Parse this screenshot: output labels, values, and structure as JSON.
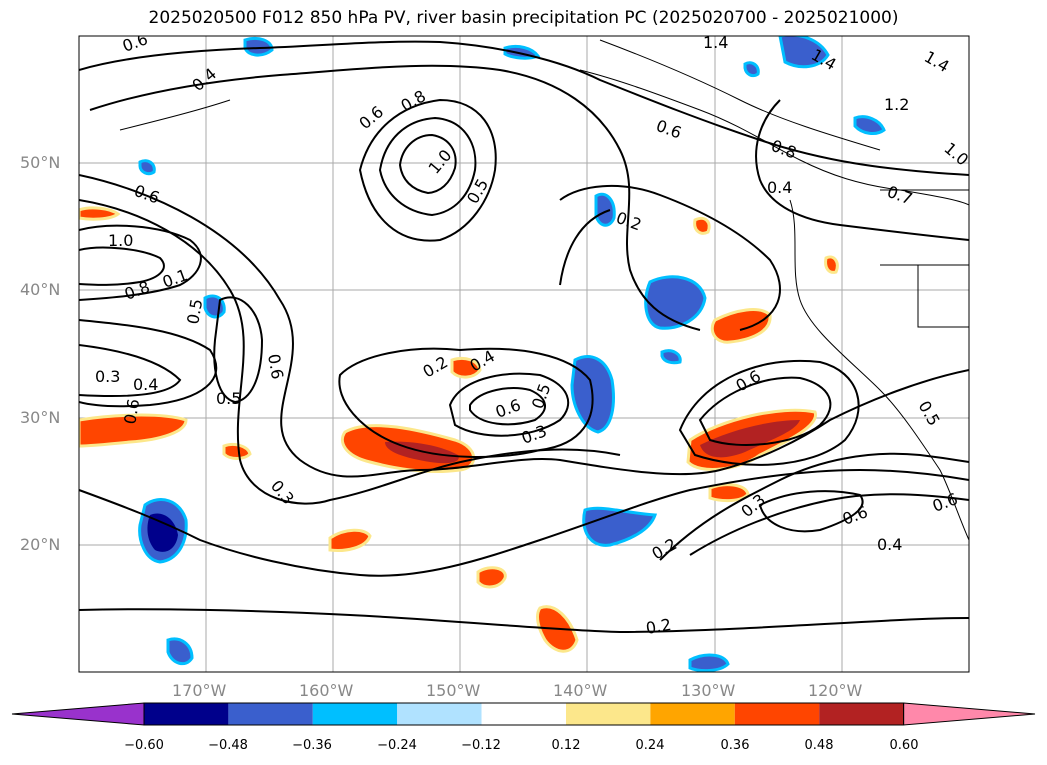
{
  "title": "2025020500 F012 850 hPa PV, river basin precipitation PC (2025020700 - 2025021000)",
  "axes": {
    "lat_labels": [
      "50°N",
      "40°N",
      "30°N",
      "20°N"
    ],
    "lon_labels": [
      "170°W",
      "160°W",
      "150°W",
      "140°W",
      "130°W",
      "120°W"
    ]
  },
  "contour_labels": [
    "0.6",
    "0.4",
    "0.6",
    "0.8",
    "1.0",
    "0.5",
    "0.6",
    "0.8",
    "0.4",
    "1.4",
    "1.4",
    "1.2",
    "1.0",
    "0.7",
    "0.6",
    "1.0",
    "0.8",
    "0.1",
    "0.5",
    "0.6",
    "0.3",
    "0.4",
    "0.5",
    "0.6",
    "0.2",
    "0.2",
    "0.4",
    "0.6",
    "0.5",
    "0.3",
    "0.3",
    "0.6",
    "0.3",
    "0.6",
    "0.4",
    "0.6",
    "0.5",
    "0.2",
    "0.2",
    "1.4"
  ],
  "colorbar": {
    "ticks": [
      "−0.60",
      "−0.48",
      "−0.36",
      "−0.24",
      "−0.12",
      "0.12",
      "0.24",
      "0.36",
      "0.48",
      "0.60"
    ],
    "colors": [
      "#9932cc",
      "#00008b",
      "#3a5fcd",
      "#00bfff",
      "#b0e2ff",
      "#ffffff",
      "#fce78b",
      "#ffa500",
      "#ff4500",
      "#b22222",
      "#ff88aa"
    ]
  },
  "chart_data": {
    "type": "heatmap",
    "title": "2025020500 F012 850 hPa PV, river basin precipitation PC (2025020700 - 2025021000)",
    "lon_range": [
      -180,
      -110
    ],
    "lat_range": [
      10,
      60
    ],
    "color_levels": [
      -0.6,
      -0.48,
      -0.36,
      -0.24,
      -0.12,
      0.12,
      0.24,
      0.36,
      0.48,
      0.6
    ]
  }
}
